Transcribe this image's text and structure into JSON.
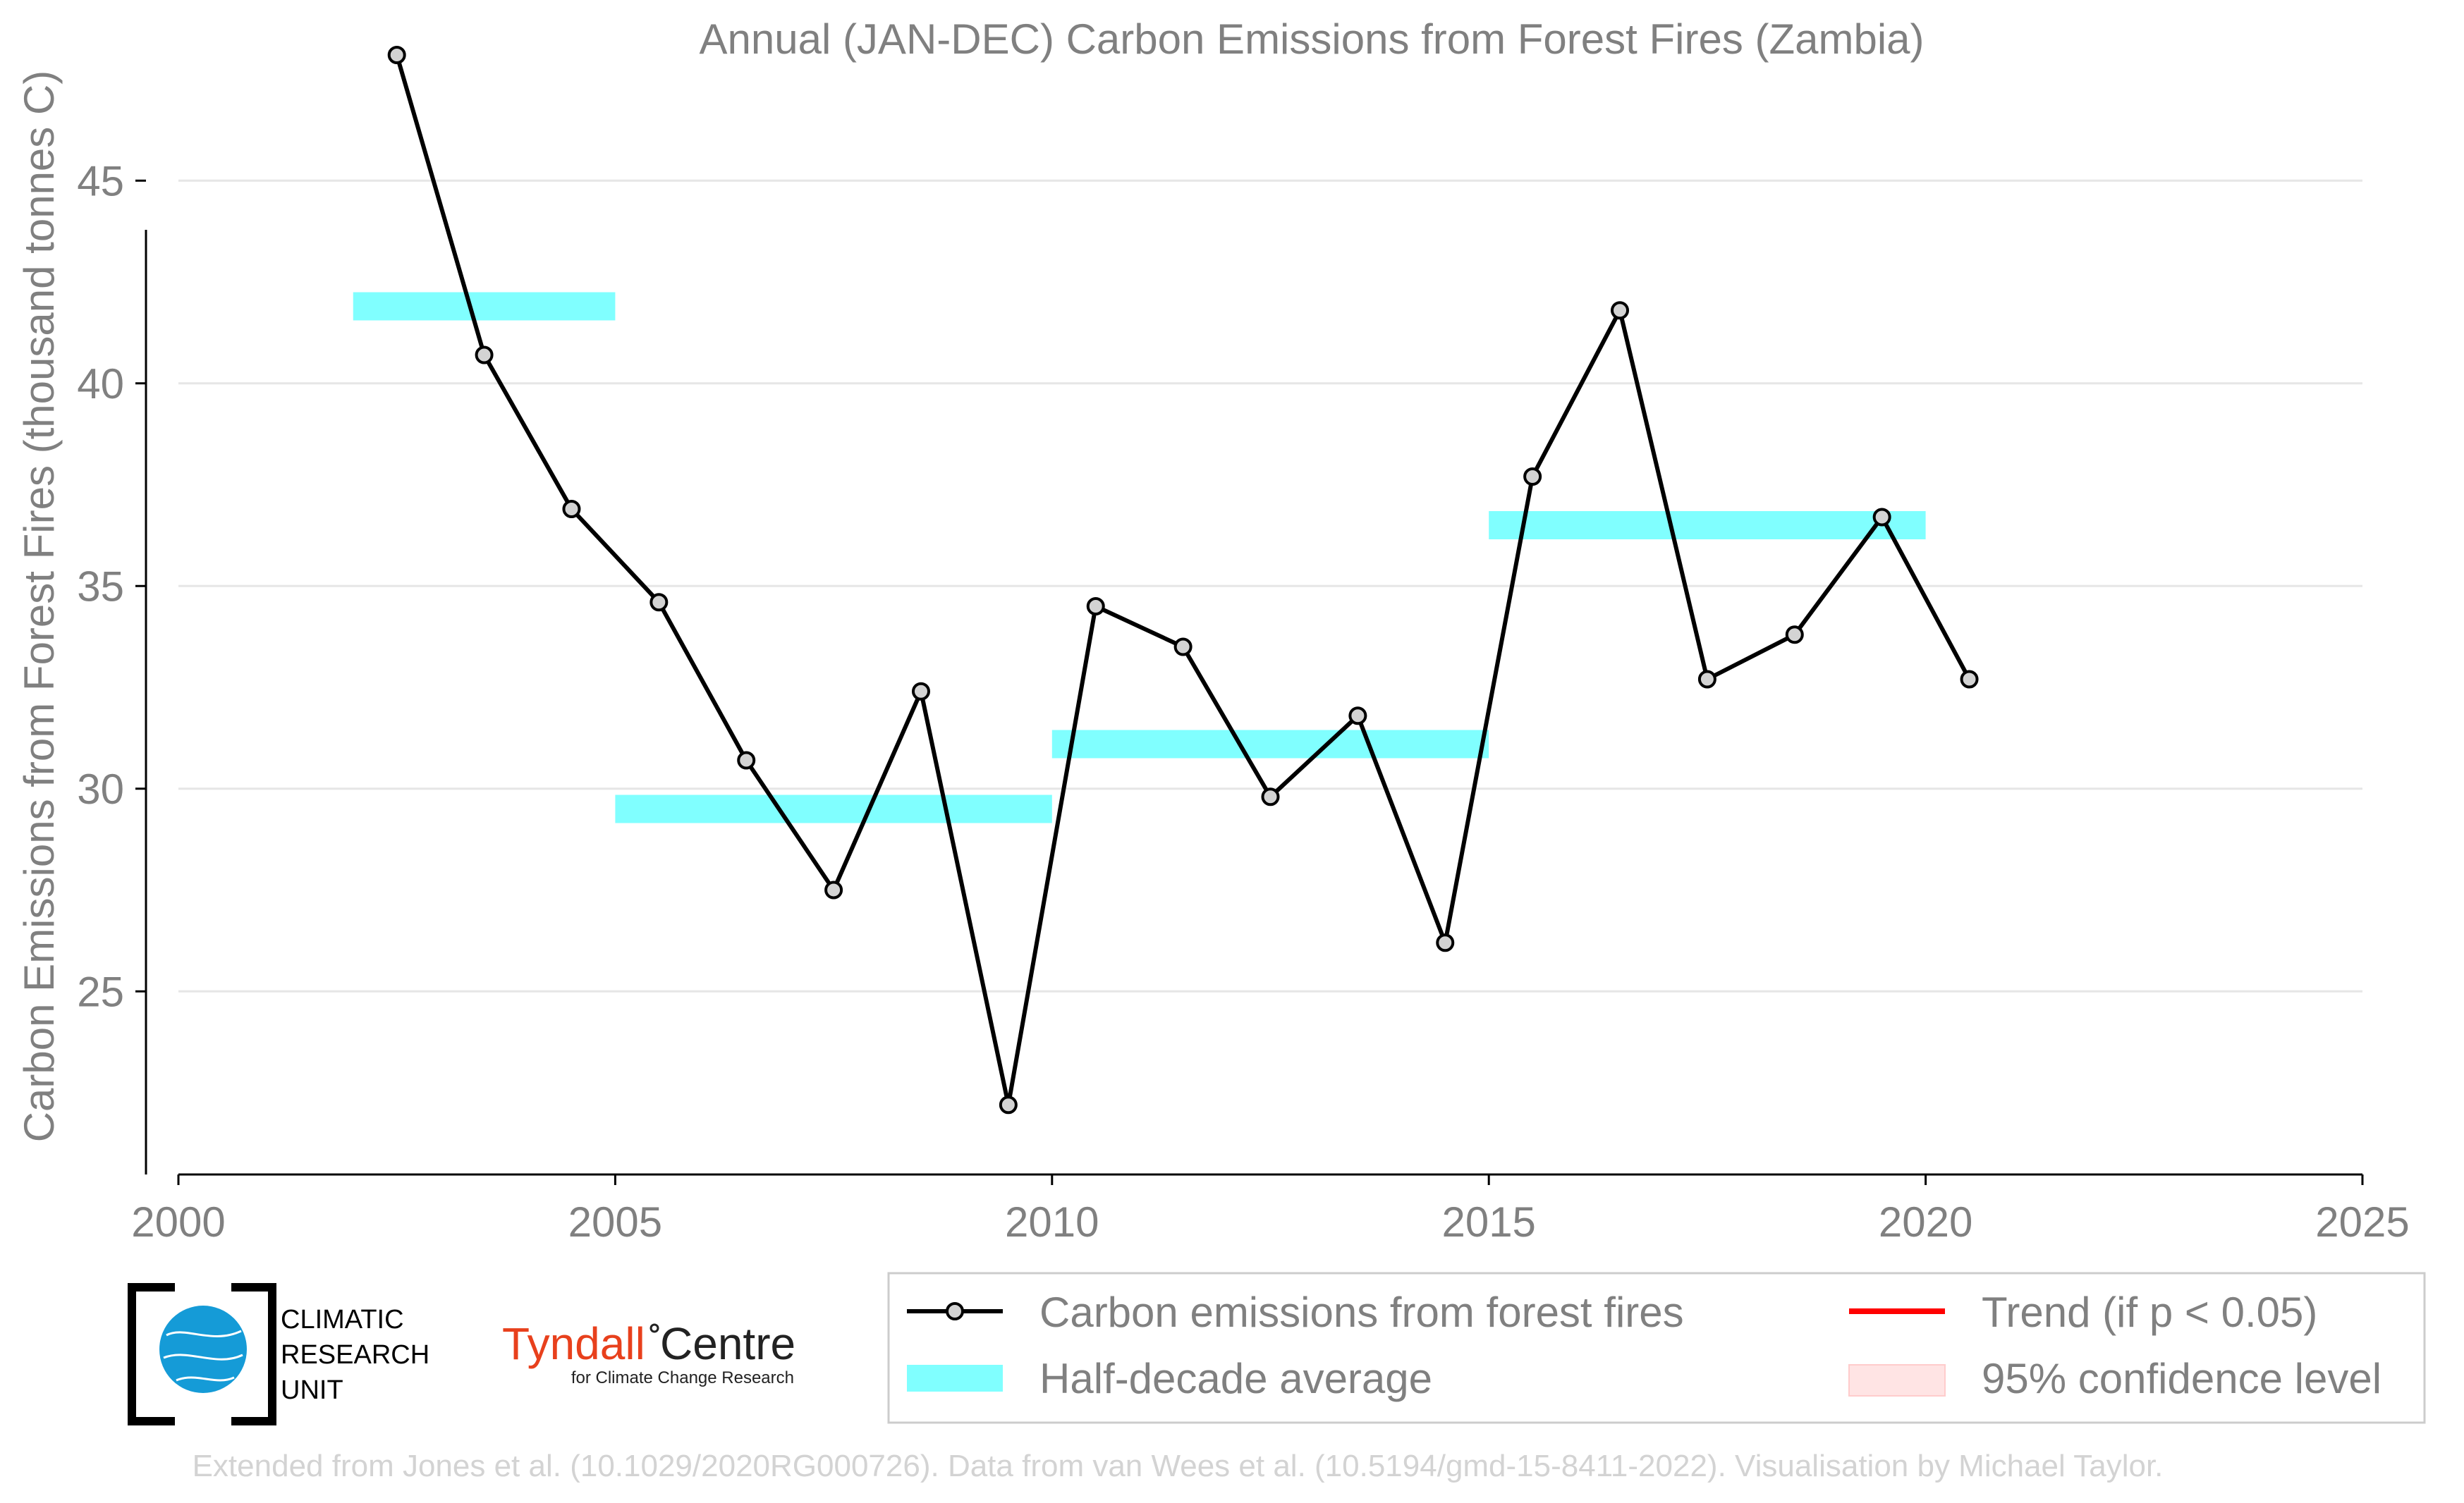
{
  "chart_data": {
    "type": "line",
    "title": "Annual (JAN-DEC) Carbon Emissions from Forest Fires (Zambia)",
    "ylabel": "Carbon Emissions from Forest Fires (thousand tonnes C)",
    "xlabel": "",
    "xlim": [
      2000,
      2025
    ],
    "ylim": [
      20.5,
      48.5
    ],
    "x_ticks": [
      "2000",
      "2005",
      "2010",
      "2015",
      "2020",
      "2025"
    ],
    "y_ticks": [
      "25",
      "30",
      "35",
      "40",
      "45"
    ],
    "grid": "horizontal",
    "series": [
      {
        "name": "Carbon emissions from forest fires",
        "color": "#000000",
        "marker_color": "#d3d3d3",
        "x": [
          2002.5,
          2003.5,
          2004.5,
          2005.5,
          2006.5,
          2007.5,
          2008.5,
          2009.5,
          2010.5,
          2011.5,
          2012.5,
          2013.5,
          2014.5,
          2015.5,
          2016.5,
          2017.5,
          2018.5,
          2019.5,
          2020.5
        ],
        "y": [
          48.1,
          40.7,
          36.9,
          34.6,
          30.7,
          27.5,
          32.4,
          22.2,
          34.5,
          33.5,
          29.8,
          31.8,
          26.2,
          37.7,
          41.8,
          32.7,
          33.8,
          36.7,
          32.7
        ]
      }
    ],
    "half_decade_average": {
      "name": "Half-decade average",
      "color": "#80ffff",
      "segments": [
        {
          "x0": 2002,
          "x1": 2005,
          "y": 41.9
        },
        {
          "x0": 2005,
          "x1": 2010,
          "y": 29.5
        },
        {
          "x0": 2010,
          "x1": 2015,
          "y": 31.1
        },
        {
          "x0": 2015,
          "x1": 2020,
          "y": 36.5
        }
      ]
    },
    "legend": {
      "placement": "bottom-right",
      "entries": [
        {
          "label": "Carbon emissions from forest fires",
          "kind": "line-marker",
          "color": "#000000"
        },
        {
          "label": "Trend (if p < 0.05)",
          "kind": "line",
          "color": "#ff0000"
        },
        {
          "label": "Half-decade average",
          "kind": "band",
          "color": "#80ffff"
        },
        {
          "label": "95% confidence level",
          "kind": "patch",
          "color": "#ffe4e4"
        }
      ]
    }
  },
  "logos": {
    "cru_lines": [
      "CLIMATIC",
      "RESEARCH",
      "UNIT"
    ],
    "tyndall_name": "Tyndall",
    "tyndall_centre": "Centre",
    "tyndall_sub": "for Climate Change Research"
  },
  "footer": "Extended from Jones et al. (10.1029/2020RG000726). Data from van Wees et al. (10.5194/gmd-15-8411-2022). Visualisation by Michael Taylor."
}
